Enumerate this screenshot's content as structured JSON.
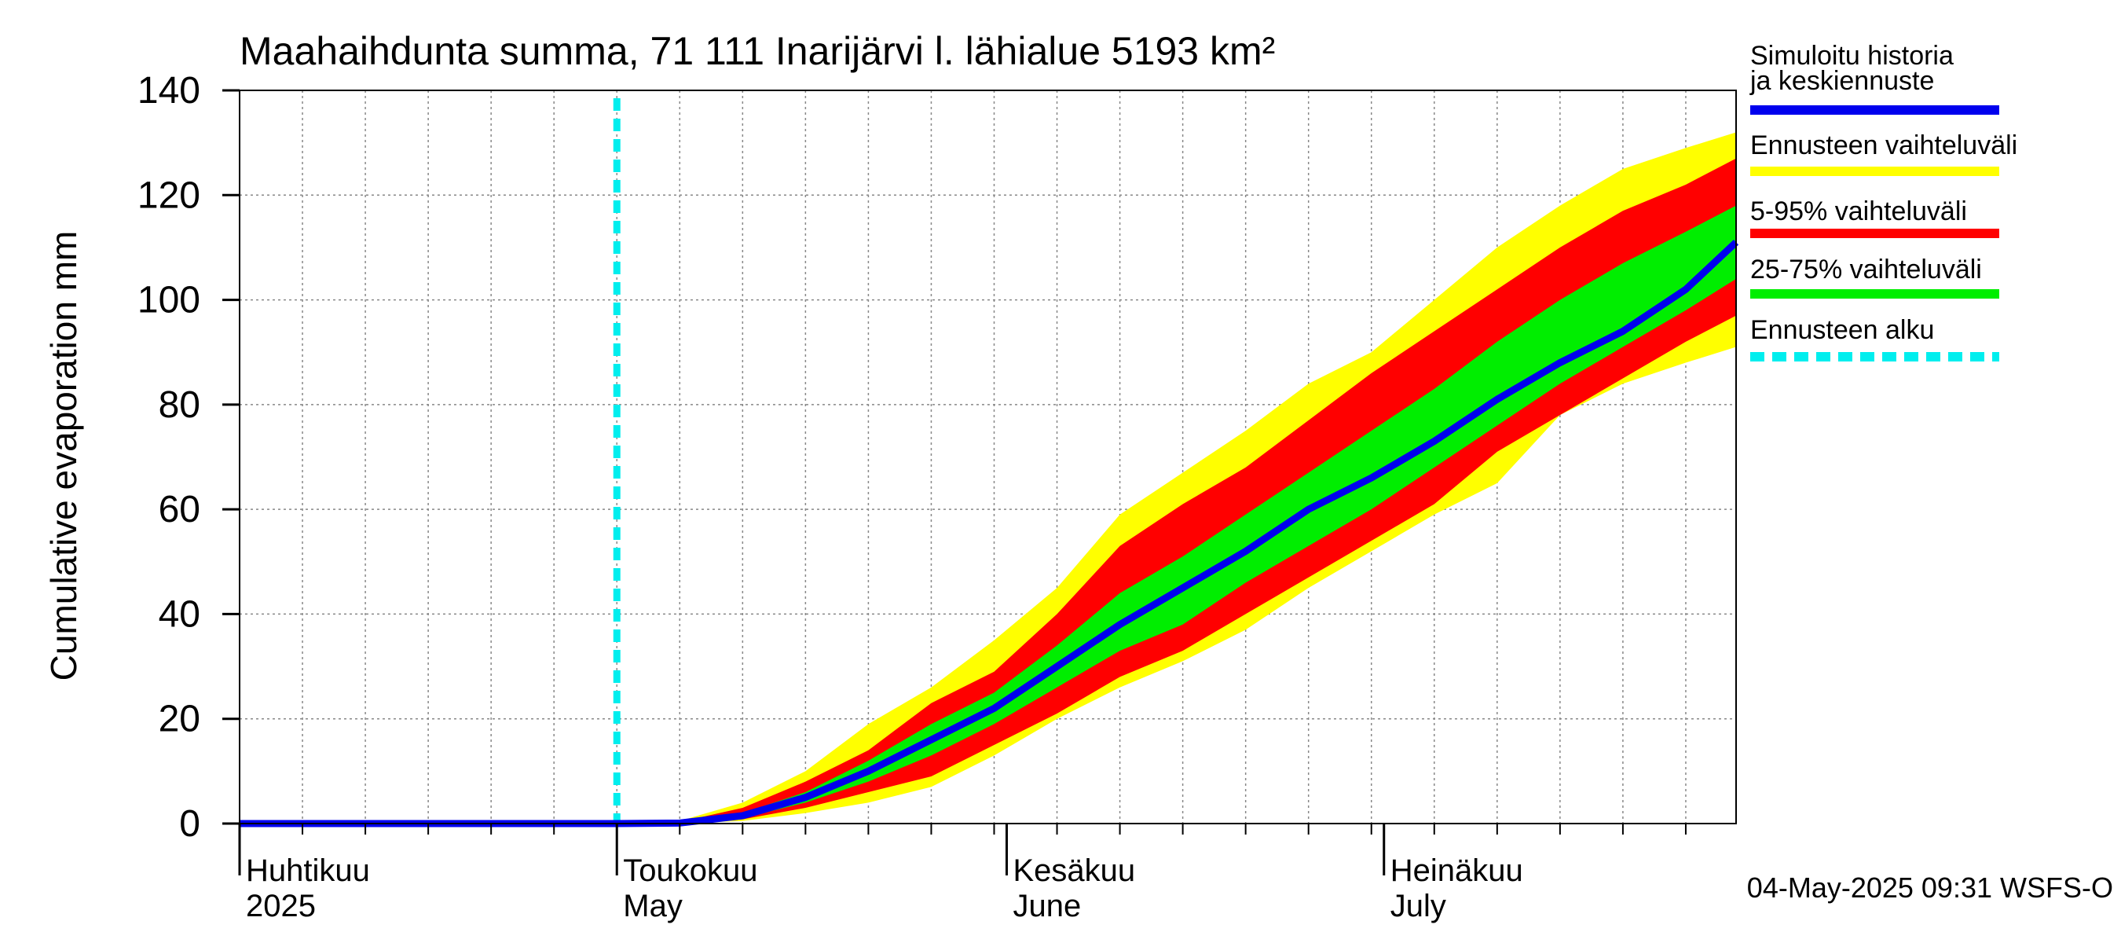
{
  "chart_data": {
    "type": "area",
    "title": "Maahaihdunta summa, 71 111 Inarijärvi l. lähialue 5193 km²",
    "ylabel": "Cumulative evaporation   mm",
    "xlabel": "",
    "ylim": [
      0,
      140
    ],
    "y_ticks": [
      0,
      20,
      40,
      60,
      80,
      100,
      120,
      140
    ],
    "x_range_days": [
      0,
      119
    ],
    "x_axis_start_date": "2025-04-01",
    "grid": true,
    "legend_position": "right",
    "forecast_start_day": 30,
    "month_labels": [
      {
        "day": 0,
        "fi": "Huhtikuu",
        "en": "2025"
      },
      {
        "day": 30,
        "fi": "Toukokuu",
        "en": "May"
      },
      {
        "day": 61,
        "fi": "Kesäkuu",
        "en": "June"
      },
      {
        "day": 91,
        "fi": "Heinäkuu",
        "en": "July"
      }
    ],
    "x": [
      0,
      10,
      20,
      30,
      35,
      40,
      45,
      50,
      55,
      60,
      65,
      70,
      75,
      80,
      85,
      90,
      95,
      100,
      105,
      110,
      115,
      119
    ],
    "series": [
      {
        "name": "Ennusteen vaihteluväli",
        "role": "range-outer",
        "color": "#ffff00",
        "upper": [
          0,
          0,
          0,
          0,
          0.5,
          4,
          10,
          19,
          26,
          35,
          45,
          59,
          67,
          75,
          84,
          90,
          100,
          110,
          118,
          125,
          129,
          132
        ],
        "lower": [
          0,
          0,
          0,
          0,
          0,
          0.5,
          2,
          4,
          7,
          13,
          20,
          26,
          31,
          37,
          45,
          52,
          59,
          65,
          78,
          84,
          88,
          91
        ]
      },
      {
        "name": "5-95% vaihteluväli",
        "role": "range-5-95",
        "color": "#ff0000",
        "upper": [
          0,
          0,
          0,
          0,
          0.3,
          3,
          8,
          14,
          23,
          29,
          40,
          53,
          61,
          68,
          77,
          86,
          94,
          102,
          110,
          117,
          122,
          127
        ],
        "lower": [
          0,
          0,
          0,
          0,
          0,
          0.8,
          3,
          6,
          9,
          15,
          21,
          28,
          33,
          40,
          47,
          54,
          61,
          71,
          78,
          85,
          92,
          97
        ]
      },
      {
        "name": "25-75% vaihteluväli",
        "role": "range-25-75",
        "color": "#00ee00",
        "upper": [
          0,
          0,
          0,
          0,
          0.2,
          2,
          6,
          12,
          19,
          25,
          34,
          44,
          51,
          59,
          67,
          75,
          83,
          92,
          100,
          107,
          113,
          118
        ],
        "lower": [
          0,
          0,
          0,
          0,
          0,
          1,
          4,
          8,
          13,
          19,
          26,
          33,
          38,
          46,
          53,
          60,
          68,
          76,
          84,
          91,
          98,
          104
        ]
      },
      {
        "name": "Simuloitu historia ja keskiennuste",
        "role": "median",
        "color": "#0000ee",
        "values": [
          0,
          0,
          0,
          0,
          0.1,
          1.5,
          5,
          10,
          16,
          22,
          30,
          38,
          45,
          52,
          60,
          66,
          73,
          81,
          88,
          94,
          102,
          111
        ]
      }
    ],
    "legend": [
      {
        "label": "Simuloitu historia ja keskiennuste",
        "color": "#0000ee",
        "style": "solid"
      },
      {
        "label": "Ennusteen vaihteluväli",
        "color": "#ffff00",
        "style": "solid"
      },
      {
        "label": "5-95% vaihteluväli",
        "color": "#ff0000",
        "style": "solid"
      },
      {
        "label": "25-75% vaihteluväli",
        "color": "#00ee00",
        "style": "solid"
      },
      {
        "label": "Ennusteen alku",
        "color": "#00eeee",
        "style": "dashed"
      }
    ],
    "footer": "04-May-2025 09:31 WSFS-O"
  }
}
